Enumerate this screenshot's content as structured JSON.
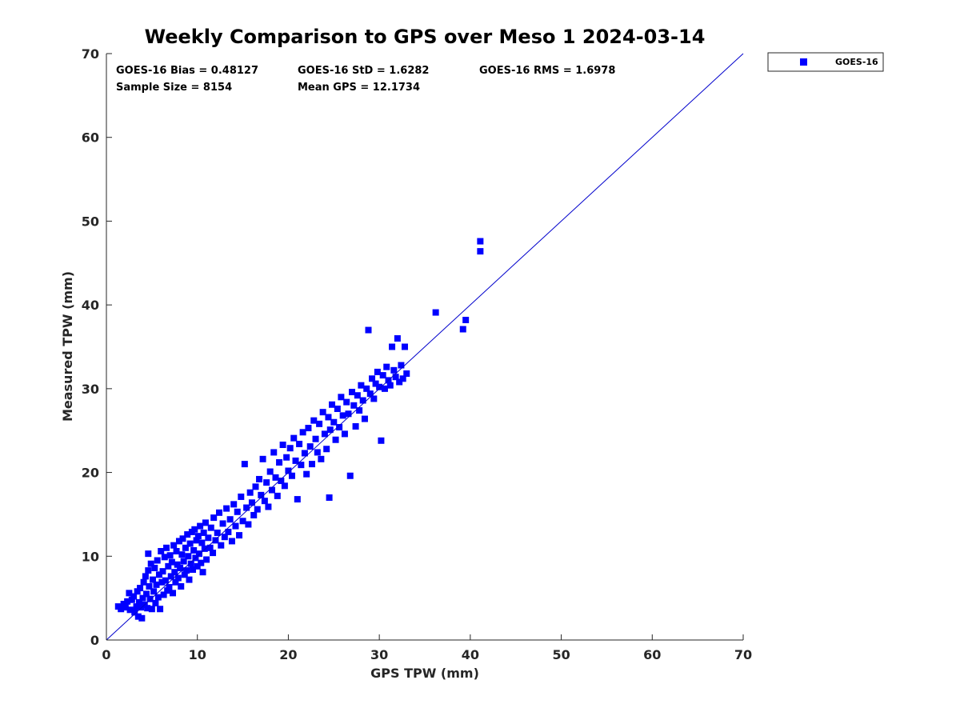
{
  "chart_data": {
    "type": "scatter",
    "title": "Weekly Comparison to GPS over Meso 1 2024-03-14",
    "xlabel": "GPS TPW (mm)",
    "ylabel": "Measured TPW (mm)",
    "xlim": [
      0,
      70
    ],
    "ylim": [
      0,
      70
    ],
    "xticks": [
      "0",
      "10",
      "20",
      "30",
      "40",
      "50",
      "60",
      "70"
    ],
    "yticks": [
      "0",
      "10",
      "20",
      "30",
      "40",
      "50",
      "60",
      "70"
    ],
    "grid": false,
    "legend_position": "outside-top-right",
    "reference_line": {
      "name": "1:1 line",
      "x": [
        0,
        70
      ],
      "y": [
        0,
        70
      ],
      "color": "#0000cc"
    },
    "stats": {
      "bias": "GOES-16 Bias = 0.48127",
      "std": "GOES-16 StD = 1.6282",
      "rms": "GOES-16 RMS = 1.6978",
      "sample_size": "Sample Size = 8154",
      "mean_gps": "Mean GPS = 12.1734"
    },
    "series": [
      {
        "name": "GOES-16",
        "color": "#0000ff",
        "marker": "square",
        "points": [
          [
            1.3,
            4.0
          ],
          [
            1.6,
            3.7
          ],
          [
            1.9,
            4.3
          ],
          [
            2.1,
            3.9
          ],
          [
            2.3,
            4.6
          ],
          [
            2.5,
            5.6
          ],
          [
            2.6,
            3.6
          ],
          [
            2.8,
            4.8
          ],
          [
            3.0,
            5.2
          ],
          [
            3.1,
            3.3
          ],
          [
            3.3,
            4.0
          ],
          [
            3.4,
            5.8
          ],
          [
            3.5,
            2.8
          ],
          [
            3.6,
            4.5
          ],
          [
            3.7,
            6.2
          ],
          [
            3.8,
            3.9
          ],
          [
            3.9,
            2.6
          ],
          [
            4.0,
            5.0
          ],
          [
            4.1,
            6.9
          ],
          [
            4.2,
            4.2
          ],
          [
            4.3,
            7.6
          ],
          [
            4.4,
            5.5
          ],
          [
            4.5,
            3.8
          ],
          [
            4.6,
            8.3
          ],
          [
            4.6,
            10.3
          ],
          [
            4.7,
            6.4
          ],
          [
            4.8,
            4.9
          ],
          [
            4.9,
            9.1
          ],
          [
            5.0,
            3.7
          ],
          [
            5.1,
            7.2
          ],
          [
            5.2,
            5.8
          ],
          [
            5.3,
            8.6
          ],
          [
            5.4,
            4.4
          ],
          [
            5.5,
            6.6
          ],
          [
            5.6,
            9.5
          ],
          [
            5.7,
            5.1
          ],
          [
            5.8,
            7.8
          ],
          [
            5.9,
            3.7
          ],
          [
            6.0,
            10.6
          ],
          [
            6.1,
            6.9
          ],
          [
            6.2,
            8.2
          ],
          [
            6.3,
            5.4
          ],
          [
            6.4,
            9.9
          ],
          [
            6.5,
            7.1
          ],
          [
            6.6,
            11.0
          ],
          [
            6.7,
            5.9
          ],
          [
            6.8,
            8.8
          ],
          [
            6.9,
            6.3
          ],
          [
            7.0,
            10.1
          ],
          [
            7.1,
            7.6
          ],
          [
            7.2,
            9.3
          ],
          [
            7.3,
            5.6
          ],
          [
            7.4,
            11.3
          ],
          [
            7.5,
            8.1
          ],
          [
            7.6,
            6.9
          ],
          [
            7.7,
            10.6
          ],
          [
            7.8,
            9.0
          ],
          [
            7.9,
            7.4
          ],
          [
            8.0,
            11.8
          ],
          [
            8.1,
            8.6
          ],
          [
            8.2,
            6.4
          ],
          [
            8.3,
            10.2
          ],
          [
            8.4,
            12.1
          ],
          [
            8.5,
            9.4
          ],
          [
            8.6,
            7.8
          ],
          [
            8.7,
            11.0
          ],
          [
            8.8,
            8.3
          ],
          [
            8.9,
            12.6
          ],
          [
            9.0,
            10.0
          ],
          [
            9.1,
            7.2
          ],
          [
            9.2,
            11.5
          ],
          [
            9.3,
            9.1
          ],
          [
            9.4,
            12.9
          ],
          [
            9.5,
            8.4
          ],
          [
            9.6,
            10.7
          ],
          [
            9.7,
            13.2
          ],
          [
            9.8,
            9.8
          ],
          [
            9.9,
            11.9
          ],
          [
            10.0,
            8.8
          ],
          [
            10.1,
            12.4
          ],
          [
            10.2,
            10.3
          ],
          [
            10.3,
            13.6
          ],
          [
            10.4,
            9.2
          ],
          [
            10.5,
            11.6
          ],
          [
            10.6,
            8.1
          ],
          [
            10.7,
            12.8
          ],
          [
            10.8,
            10.9
          ],
          [
            10.9,
            14.0
          ],
          [
            11.0,
            9.6
          ],
          [
            11.2,
            12.2
          ],
          [
            11.4,
            11.0
          ],
          [
            11.5,
            13.4
          ],
          [
            11.7,
            10.4
          ],
          [
            11.8,
            14.6
          ],
          [
            12.0,
            11.9
          ],
          [
            12.2,
            12.8
          ],
          [
            12.4,
            15.2
          ],
          [
            12.6,
            11.3
          ],
          [
            12.8,
            13.9
          ],
          [
            13.0,
            12.3
          ],
          [
            13.2,
            15.7
          ],
          [
            13.4,
            12.9
          ],
          [
            13.6,
            14.4
          ],
          [
            13.8,
            11.8
          ],
          [
            14.0,
            16.2
          ],
          [
            14.2,
            13.6
          ],
          [
            14.4,
            15.3
          ],
          [
            14.6,
            12.5
          ],
          [
            14.8,
            17.1
          ],
          [
            15.0,
            14.2
          ],
          [
            15.2,
            21.0
          ],
          [
            15.4,
            15.8
          ],
          [
            15.6,
            13.8
          ],
          [
            15.8,
            17.6
          ],
          [
            16.0,
            16.4
          ],
          [
            16.2,
            14.9
          ],
          [
            16.4,
            18.3
          ],
          [
            16.6,
            15.6
          ],
          [
            16.8,
            19.2
          ],
          [
            17.0,
            17.3
          ],
          [
            17.2,
            21.6
          ],
          [
            17.4,
            16.6
          ],
          [
            17.6,
            18.8
          ],
          [
            17.8,
            15.9
          ],
          [
            18.0,
            20.1
          ],
          [
            18.2,
            17.9
          ],
          [
            18.4,
            22.4
          ],
          [
            18.6,
            19.4
          ],
          [
            18.8,
            17.2
          ],
          [
            19.0,
            21.2
          ],
          [
            19.2,
            19.0
          ],
          [
            19.4,
            23.3
          ],
          [
            19.6,
            18.4
          ],
          [
            19.8,
            21.8
          ],
          [
            20.0,
            20.2
          ],
          [
            20.2,
            22.9
          ],
          [
            20.4,
            19.6
          ],
          [
            20.6,
            24.1
          ],
          [
            20.8,
            21.4
          ],
          [
            21.0,
            16.8
          ],
          [
            21.2,
            23.4
          ],
          [
            21.4,
            20.9
          ],
          [
            21.6,
            24.8
          ],
          [
            21.8,
            22.3
          ],
          [
            22.0,
            19.8
          ],
          [
            22.2,
            25.3
          ],
          [
            22.4,
            23.1
          ],
          [
            22.6,
            21.0
          ],
          [
            22.8,
            26.2
          ],
          [
            23.0,
            24.0
          ],
          [
            23.2,
            22.4
          ],
          [
            23.4,
            25.8
          ],
          [
            23.6,
            21.6
          ],
          [
            23.8,
            27.2
          ],
          [
            24.0,
            24.6
          ],
          [
            24.2,
            22.8
          ],
          [
            24.4,
            26.6
          ],
          [
            24.5,
            17.0
          ],
          [
            24.6,
            25.1
          ],
          [
            24.8,
            28.1
          ],
          [
            25.0,
            26.0
          ],
          [
            25.2,
            23.9
          ],
          [
            25.4,
            27.6
          ],
          [
            25.6,
            25.4
          ],
          [
            25.8,
            29.0
          ],
          [
            26.0,
            26.8
          ],
          [
            26.2,
            24.6
          ],
          [
            26.4,
            28.4
          ],
          [
            26.6,
            27.0
          ],
          [
            26.8,
            19.6
          ],
          [
            27.0,
            29.6
          ],
          [
            27.2,
            28.0
          ],
          [
            27.4,
            25.5
          ],
          [
            27.6,
            29.2
          ],
          [
            27.8,
            27.4
          ],
          [
            28.0,
            30.4
          ],
          [
            28.2,
            28.6
          ],
          [
            28.4,
            26.4
          ],
          [
            28.6,
            30.0
          ],
          [
            28.8,
            37.0
          ],
          [
            29.0,
            29.4
          ],
          [
            29.2,
            31.2
          ],
          [
            29.4,
            28.8
          ],
          [
            29.6,
            30.6
          ],
          [
            29.8,
            32.0
          ],
          [
            30.0,
            30.2
          ],
          [
            30.2,
            23.8
          ],
          [
            30.4,
            31.6
          ],
          [
            30.6,
            30.0
          ],
          [
            30.8,
            32.6
          ],
          [
            31.0,
            31.0
          ],
          [
            31.2,
            30.4
          ],
          [
            31.4,
            35.0
          ],
          [
            31.6,
            32.2
          ],
          [
            31.8,
            31.4
          ],
          [
            32.0,
            36.0
          ],
          [
            32.2,
            30.8
          ],
          [
            32.4,
            32.8
          ],
          [
            32.6,
            31.2
          ],
          [
            32.8,
            35.0
          ],
          [
            33.0,
            31.8
          ],
          [
            36.2,
            39.1
          ],
          [
            39.2,
            37.1
          ],
          [
            39.5,
            38.2
          ],
          [
            41.1,
            47.6
          ],
          [
            41.1,
            46.4
          ]
        ]
      }
    ]
  }
}
